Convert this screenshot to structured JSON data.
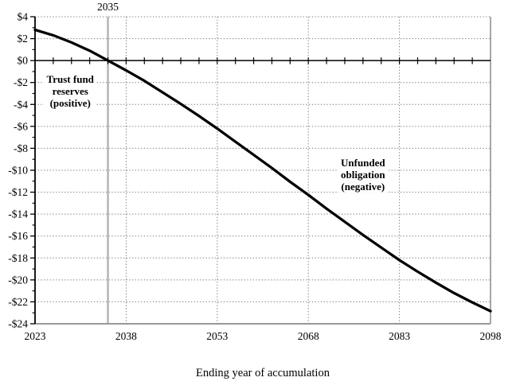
{
  "chart_data": {
    "type": "line",
    "title": "",
    "xlabel": "Ending year of accumulation",
    "ylabel": "",
    "xlim": [
      2023,
      2098
    ],
    "ylim": [
      -24,
      4
    ],
    "y_major_step": 2,
    "y_minor_step": 1,
    "x_axis_tick_step_years": 3,
    "grid": true,
    "x_tick_labels": [
      "2023",
      "2038",
      "2053",
      "2068",
      "2083",
      "2098"
    ],
    "x_tick_years": [
      2023,
      2038,
      2053,
      2068,
      2083,
      2098
    ],
    "y_tick_labels": [
      "$4",
      "$2",
      "$0",
      "-$2",
      "-$4",
      "-$6",
      "-$8",
      "-$10",
      "-$12",
      "-$14",
      "-$16",
      "-$18",
      "-$20",
      "-$22",
      "-$24"
    ],
    "y_tick_values": [
      4,
      2,
      0,
      -2,
      -4,
      -6,
      -8,
      -10,
      -12,
      -14,
      -16,
      -18,
      -20,
      -22,
      -24
    ],
    "vertical_gridline_years": [
      2038,
      2053,
      2068,
      2083
    ],
    "reference_line": {
      "x": 2035,
      "label": "2035",
      "color": "#b3b3b3"
    },
    "series": [
      {
        "name": "Trust fund reserves / unfunded obligation",
        "x": [
          2023,
          2026,
          2029,
          2032,
          2035,
          2038,
          2041,
          2044,
          2047,
          2050,
          2053,
          2056,
          2059,
          2062,
          2065,
          2068,
          2071,
          2074,
          2077,
          2080,
          2083,
          2086,
          2089,
          2092,
          2095,
          2098
        ],
        "y": [
          2.8,
          2.3,
          1.65,
          0.9,
          0,
          -0.9,
          -1.85,
          -2.9,
          -3.95,
          -5.05,
          -6.2,
          -7.4,
          -8.6,
          -9.8,
          -11.05,
          -12.25,
          -13.5,
          -14.7,
          -15.9,
          -17.05,
          -18.2,
          -19.25,
          -20.25,
          -21.2,
          -22.05,
          -22.85
        ]
      }
    ],
    "annotations": [
      {
        "text": "Trust fund\nreserves\n(positive)",
        "x": 2028.8,
        "y": -2.8
      },
      {
        "text": "Unfunded\nobligation\n(negative)",
        "x": 2077,
        "y": -10.4
      }
    ],
    "colors": {
      "line": "#000000",
      "grid": "#787878",
      "axis": "#000000",
      "frame_bottom": "#999999",
      "frame_right": "#8c8c8c",
      "reference": "#b3b3b3"
    },
    "legend_position": "none"
  }
}
